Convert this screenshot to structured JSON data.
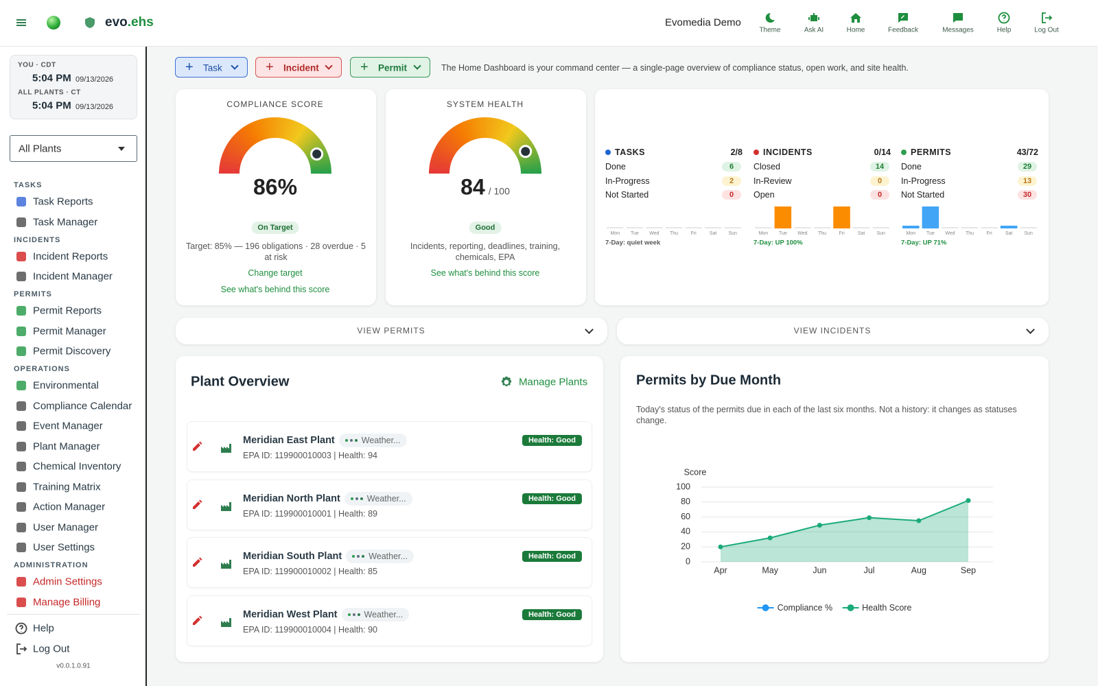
{
  "header": {
    "brand": "evo",
    "brand_accent": ".ehs",
    "org": "Evomedia Demo",
    "nav": [
      "Theme",
      "Ask AI",
      "Home",
      "Feedback",
      "Messages",
      "Help",
      "Log Out"
    ]
  },
  "clocks": [
    {
      "label": "YOU · CDT",
      "time": "5:04 PM",
      "date": "09/13/2026"
    },
    {
      "label": "ALL PLANTS · CT",
      "time": "5:04 PM",
      "date": "09/13/2026"
    }
  ],
  "plant_filter": "All Plants",
  "sidebar": [
    {
      "title": "TASKS",
      "items": [
        "Task Reports",
        "Task Manager"
      ]
    },
    {
      "title": "INCIDENTS",
      "items": [
        "Incident Reports",
        "Incident Manager"
      ]
    },
    {
      "title": "PERMITS",
      "items": [
        "Permit Reports",
        "Permit Manager",
        "Permit Discovery"
      ]
    },
    {
      "title": "OPERATIONS",
      "items": [
        "Environmental",
        "Compliance Calendar",
        "Event Manager",
        "Plant Manager",
        "Chemical Inventory",
        "Training Matrix",
        "Action Manager",
        "User Manager",
        "User Settings"
      ]
    },
    {
      "title": "ADMINISTRATION",
      "items": [
        "Admin Settings",
        "Manage Billing"
      ]
    }
  ],
  "sidebar_footer": [
    "Help",
    "Log Out"
  ],
  "version": "v0.0.1.0.91",
  "actions": [
    "Task",
    "Incident",
    "Permit"
  ],
  "intro": "The Home Dashboard is your command center — a single-page overview of compliance status, open work, and site health.",
  "compliance": {
    "title": "COMPLIANCE SCORE",
    "value": 86,
    "value_label": "86%",
    "range": [
      0,
      100
    ],
    "status": "On Target",
    "description": "Target: 85% — 196 obligations · 28 overdue · 5 at risk",
    "links": [
      "Change target",
      "See what's behind this score"
    ]
  },
  "system_health": {
    "title": "SYSTEM HEALTH",
    "value": 84,
    "range": [
      0,
      100
    ],
    "max_label": "/ 100",
    "status": "Good",
    "description": "Incidents, reporting, deadlines, training, chemicals, EPA",
    "links": [
      "See what's behind this score"
    ]
  },
  "summary": [
    {
      "name": "TASKS",
      "ratio": "2/8",
      "color": "#1e66d0",
      "rows": [
        {
          "label": "Done",
          "value": 6
        },
        {
          "label": "In-Progress",
          "value": 2
        },
        {
          "label": "Not Started",
          "value": 0
        }
      ],
      "days": [
        "Mon",
        "Tue",
        "Wed",
        "Thu",
        "Fri",
        "Sat",
        "Sun"
      ],
      "week": [
        0,
        0,
        0,
        0,
        0,
        0,
        0
      ],
      "note": "7-Day: quiet week"
    },
    {
      "name": "INCIDENTS",
      "ratio": "0/14",
      "color": "#d32f2f",
      "bar_color": "#fb8c00",
      "rows": [
        {
          "label": "Closed",
          "value": 14
        },
        {
          "label": "In-Review",
          "value": 0
        },
        {
          "label": "Open",
          "value": 0
        }
      ],
      "days": [
        "Mon",
        "Tue",
        "Wed",
        "Thu",
        "Fri",
        "Sat",
        "Sun"
      ],
      "week": [
        0,
        1,
        0,
        0,
        1,
        0,
        0
      ],
      "note": "7-Day: UP 100%"
    },
    {
      "name": "PERMITS",
      "ratio": "43/72",
      "color": "#2e9e4f",
      "bar_color": "#42a5f5",
      "rows": [
        {
          "label": "Done",
          "value": 29
        },
        {
          "label": "In-Progress",
          "value": 13
        },
        {
          "label": "Not Started",
          "value": 30
        }
      ],
      "days": [
        "Mon",
        "Tue",
        "Wed",
        "Thu",
        "Fri",
        "Sat",
        "Sun"
      ],
      "week": [
        1,
        8,
        0,
        0,
        0,
        1,
        0
      ],
      "note": "7-Day: UP 71%"
    }
  ],
  "expanders": [
    "VIEW PERMITS",
    "VIEW INCIDENTS"
  ],
  "plant_overview": {
    "title": "Plant Overview",
    "action": "Manage Plants",
    "plants": [
      {
        "name": "Meridian East Plant",
        "weather": "Weather...",
        "details": "EPA ID: 119900010003 | Health: 94",
        "health": "Health: Good"
      },
      {
        "name": "Meridian North Plant",
        "weather": "Weather...",
        "details": "EPA ID: 119900010001 | Health: 89",
        "health": "Health: Good"
      },
      {
        "name": "Meridian South Plant",
        "weather": "Weather...",
        "details": "EPA ID: 119900010002 | Health: 85",
        "health": "Health: Good"
      },
      {
        "name": "Meridian West Plant",
        "weather": "Weather...",
        "details": "EPA ID: 119900010004 | Health: 90",
        "health": "Health: Good"
      }
    ]
  },
  "chart_data": {
    "type": "line",
    "title": "Permits by Due Month",
    "subtitle": "Today's status of the permits due in each of the last six months. Not a history: it changes as statuses change.",
    "y_label": "Score",
    "categories": [
      "Apr",
      "May",
      "Jun",
      "Jul",
      "Aug",
      "Sep"
    ],
    "series": [
      {
        "name": "Compliance %",
        "color": "#2196f3",
        "values": [
          null,
          null,
          null,
          null,
          null,
          null
        ]
      },
      {
        "name": "Health Score",
        "color": "#1aaa7a",
        "values": [
          20,
          32,
          49,
          59,
          55,
          82
        ]
      }
    ],
    "ylim": [
      0,
      100
    ],
    "yticks": [
      0,
      20,
      40,
      60,
      80,
      100
    ],
    "area": true
  }
}
